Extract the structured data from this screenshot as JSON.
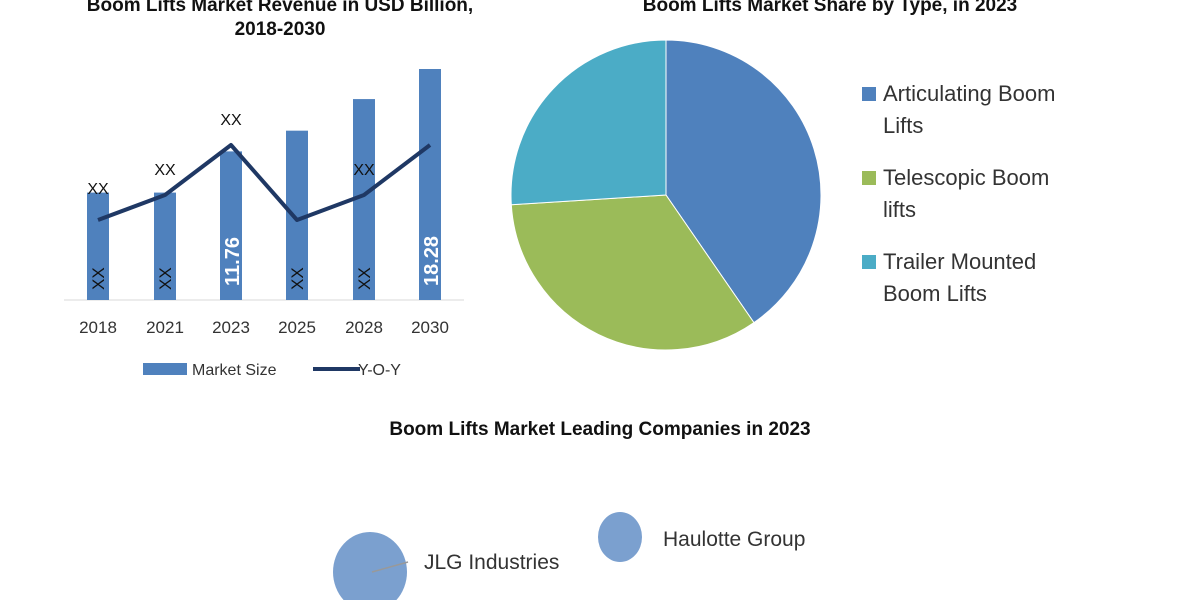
{
  "chart_data": [
    {
      "type": "bar",
      "title": "Boom Lifts Market Revenue in USD Billion, 2018-2030",
      "categories": [
        "2018",
        "2021",
        "2023",
        "2025",
        "2028",
        "2030"
      ],
      "series": [
        {
          "name": "Market Size",
          "values": [
            8.5,
            8.5,
            11.76,
            13.4,
            15.9,
            18.28
          ],
          "data_labels": [
            "XX",
            "XX",
            "11.76",
            "XX",
            "XX",
            "18.28"
          ],
          "color": "#4f81bd"
        },
        {
          "name": "Y-O-Y",
          "type": "line",
          "values": [
            2,
            3,
            5,
            2,
            3,
            5
          ],
          "data_labels": [
            "XX",
            "XX",
            "XX",
            "",
            "XX",
            ""
          ],
          "color": "#1f3864"
        }
      ],
      "legend": "bottom"
    },
    {
      "type": "pie",
      "title": "Boom Lifts Market Share by Type, in 2023",
      "slices": [
        {
          "label": "Articulating Boom Lifts",
          "value": 40.4,
          "color": "#4f81bd"
        },
        {
          "label": "Telescopic Boom lifts",
          "value": 33.6,
          "color": "#9bbb59"
        },
        {
          "label": "Trailer Mounted Boom Lifts",
          "value": 26.0,
          "color": "#4bacc6"
        }
      ],
      "legend": "right"
    },
    {
      "type": "bubble",
      "title": "Boom Lifts Market Leading Companies in 2023",
      "points": [
        {
          "label": "JLG Industries",
          "size": 1.0
        },
        {
          "label": "Haulotte Group",
          "size": 0.4
        }
      ],
      "color": "#7ba0cf"
    }
  ]
}
